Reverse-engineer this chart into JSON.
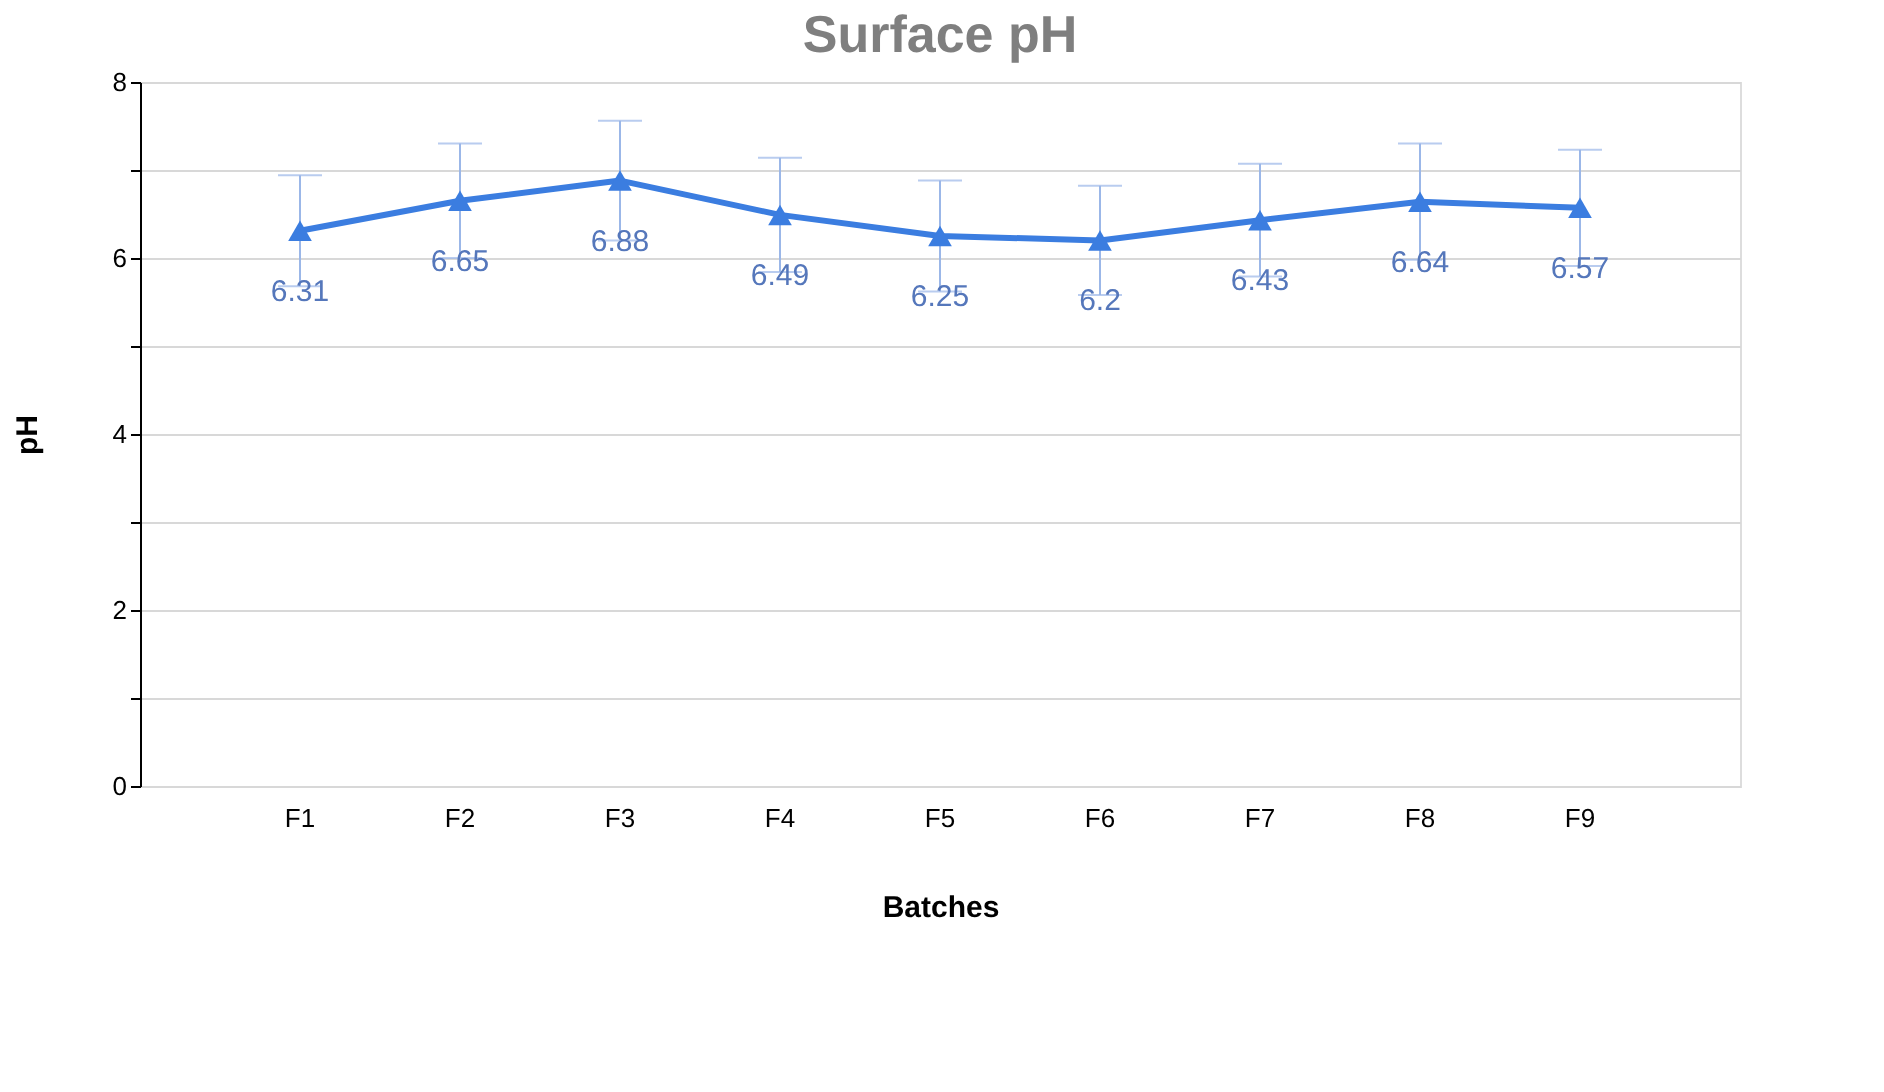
{
  "chart_data": {
    "type": "line",
    "title": "Surface pH",
    "xlabel": "Batches",
    "ylabel": "pH",
    "categories": [
      "F1",
      "F2",
      "F3",
      "F4",
      "F5",
      "F6",
      "F7",
      "F8",
      "F9"
    ],
    "series": [
      {
        "color": "#3b7de0",
        "values": [
          6.31,
          6.65,
          6.88,
          6.49,
          6.25,
          6.2,
          6.43,
          6.64,
          6.57
        ],
        "errors": [
          0.63,
          0.65,
          0.68,
          0.65,
          0.63,
          0.62,
          0.64,
          0.66,
          0.66
        ]
      }
    ],
    "ylim": [
      0,
      8
    ],
    "yticks": [
      0,
      {
        "value": 1,
        "label": null
      },
      2,
      {
        "value": 3,
        "label": null
      },
      4,
      {
        "value": 5,
        "label": null
      },
      6,
      {
        "value": 7,
        "label": null
      },
      8
    ],
    "grid": "y",
    "marker": "triangle",
    "line_style": "solid",
    "data_labels": true
  }
}
